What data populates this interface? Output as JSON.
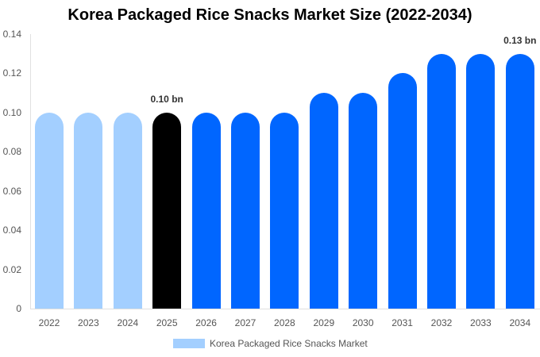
{
  "title": "Korea Packaged Rice Snacks Market Size (2022-2034)",
  "chart_data": {
    "type": "bar",
    "title": "Korea Packaged Rice Snacks Market Size (2022-2034)",
    "xlabel": "",
    "ylabel": "",
    "ylim": [
      0,
      0.14
    ],
    "yticks": [
      "0",
      "0.02",
      "0.04",
      "0.06",
      "0.08",
      "0.10",
      "0.12",
      "0.14"
    ],
    "grid": false,
    "legend_position": "bottom",
    "categories": [
      "2022",
      "2023",
      "2024",
      "2025",
      "2026",
      "2027",
      "2028",
      "2029",
      "2030",
      "2031",
      "2032",
      "2033",
      "2034"
    ],
    "series": [
      {
        "name": "Korea Packaged Rice Snacks Market",
        "values": [
          0.1,
          0.1,
          0.1,
          0.1,
          0.1,
          0.1,
          0.1,
          0.11,
          0.11,
          0.12,
          0.13,
          0.13,
          0.13
        ],
        "colors": [
          "#a3cfff",
          "#a3cfff",
          "#a3cfff",
          "#000000",
          "#0066ff",
          "#0066ff",
          "#0066ff",
          "#0066ff",
          "#0066ff",
          "#0066ff",
          "#0066ff",
          "#0066ff",
          "#0066ff"
        ]
      }
    ],
    "annotations": [
      {
        "category": "2025",
        "text": "0.10 bn"
      },
      {
        "category": "2034",
        "text": "0.13 bn"
      }
    ]
  },
  "legend": {
    "label": "Korea Packaged Rice Snacks Market",
    "color": "#a3cfff"
  }
}
